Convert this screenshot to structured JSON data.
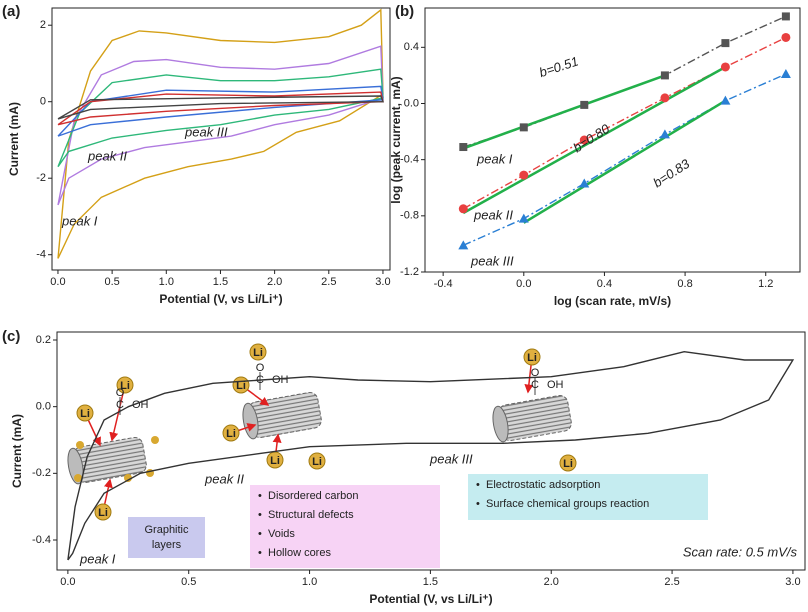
{
  "chart_data": [
    {
      "type": "line",
      "panel_label": "(a)",
      "xlabel": "Potential (V, vs Li/Li⁺)",
      "ylabel": "Current (mA)",
      "xlim": [
        -0.055,
        3.065
      ],
      "ylim": [
        -4.4,
        2.45
      ],
      "xticks": [
        {
          "value": 0,
          "label": "0.0"
        },
        0.5,
        {
          "value": 1,
          "label": "1.0"
        },
        1.5,
        {
          "value": 2,
          "label": "2.0"
        },
        2.5,
        {
          "value": 3,
          "label": "3.0"
        }
      ],
      "yticks": [
        -4,
        -2,
        0,
        2
      ],
      "series": [
        {
          "color": "#d4a017",
          "x": [
            0,
            0.1,
            0.3,
            0.5,
            0.75,
            1.0,
            1.5,
            2.0,
            2.5,
            2.8,
            2.98,
            3.0,
            2.6,
            2.2,
            1.9,
            1.6,
            1.2,
            0.8,
            0.4,
            0.15,
            0
          ],
          "values": [
            -4.1,
            -1.0,
            0.8,
            1.6,
            1.85,
            1.8,
            1.6,
            1.55,
            1.7,
            2.0,
            2.4,
            0.2,
            -0.5,
            -0.8,
            -1.3,
            -1.5,
            -1.7,
            -2.0,
            -2.5,
            -3.2,
            -4.1
          ]
        },
        {
          "color": "#b07be0",
          "x": [
            0,
            0.15,
            0.4,
            0.7,
            1.0,
            1.5,
            2.0,
            2.5,
            2.98,
            3.0,
            2.5,
            2.0,
            1.6,
            1.2,
            0.8,
            0.4,
            0.1,
            0
          ],
          "values": [
            -2.7,
            -0.5,
            0.7,
            1.05,
            1.1,
            0.9,
            0.85,
            1.0,
            1.45,
            0.1,
            -0.35,
            -0.6,
            -0.9,
            -1.05,
            -1.2,
            -1.5,
            -2.0,
            -2.7
          ]
        },
        {
          "color": "#2eb87a",
          "x": [
            0,
            0.2,
            0.5,
            1.0,
            1.5,
            2.0,
            2.5,
            2.98,
            3.0,
            2.5,
            2.0,
            1.5,
            1.0,
            0.5,
            0.1,
            0
          ],
          "values": [
            -1.7,
            -0.3,
            0.5,
            0.7,
            0.55,
            0.55,
            0.65,
            0.85,
            0.1,
            -0.2,
            -0.35,
            -0.6,
            -0.75,
            -0.95,
            -1.3,
            -1.7
          ]
        },
        {
          "color": "#3a6fd8",
          "x": [
            0,
            0.3,
            1.0,
            2.0,
            2.98,
            3.0,
            2.0,
            1.0,
            0.3,
            0
          ],
          "values": [
            -0.9,
            0,
            0.3,
            0.25,
            0.4,
            0.05,
            -0.15,
            -0.4,
            -0.6,
            -0.9
          ]
        },
        {
          "color": "#d03030",
          "x": [
            0,
            0.3,
            1.0,
            2.0,
            2.98,
            3.0,
            2.0,
            1.0,
            0.3,
            0
          ],
          "values": [
            -0.6,
            0,
            0.2,
            0.15,
            0.25,
            0,
            -0.1,
            -0.25,
            -0.4,
            -0.6
          ]
        },
        {
          "color": "#444444",
          "x": [
            0,
            0.3,
            1.5,
            2.98,
            3.0,
            1.5,
            0.3,
            0
          ],
          "values": [
            -0.45,
            0.05,
            0.1,
            0.15,
            0,
            -0.05,
            -0.2,
            -0.45
          ]
        }
      ],
      "annotations": [
        "peak I",
        "peak II",
        "peak III"
      ]
    },
    {
      "type": "line",
      "panel_label": "(b)",
      "xlabel": "log (scan rate, mV/s)",
      "ylabel": "log (peak current, mA)",
      "xlim": [
        -0.49,
        1.37
      ],
      "ylim": [
        -1.2,
        0.68
      ],
      "xticks": [
        -0.4,
        {
          "value": 0,
          "label": "0.0"
        },
        0.4,
        0.8,
        1.2
      ],
      "yticks": [
        -1.2,
        -0.8,
        -0.4,
        {
          "value": 0,
          "label": "0.0"
        },
        0.4
      ],
      "series": [
        {
          "color": "#555555",
          "marker": "square",
          "x": [
            -0.3,
            0,
            0.3,
            0.7,
            1.0,
            1.3
          ],
          "values": [
            -0.31,
            -0.17,
            -0.01,
            0.2,
            0.43,
            0.62
          ]
        },
        {
          "color": "#e84040",
          "marker": "circle",
          "x": [
            -0.3,
            0,
            0.3,
            0.7,
            1.0,
            1.3
          ],
          "values": [
            -0.75,
            -0.51,
            -0.26,
            0.04,
            0.26,
            0.47
          ]
        },
        {
          "color": "#2a7fd4",
          "marker": "triangle",
          "x": [
            -0.3,
            0,
            0.3,
            0.7,
            1.0,
            1.3
          ],
          "values": [
            -1.01,
            -0.82,
            -0.57,
            -0.22,
            0.02,
            0.21
          ]
        }
      ],
      "fit_color": "#22b04a",
      "fit_lines": [
        {
          "x": [
            -0.3,
            0.7
          ],
          "values": [
            -0.32,
            0.2
          ]
        },
        {
          "x": [
            -0.3,
            1.0
          ],
          "values": [
            -0.78,
            0.26
          ]
        },
        {
          "x": [
            0,
            1.0
          ],
          "values": [
            -0.85,
            0.02
          ]
        }
      ],
      "fit_labels": [
        "b=0.51",
        "b=0.80",
        "b=0.83"
      ],
      "annotations": [
        "peak I",
        "peak II",
        "peak III"
      ]
    },
    {
      "type": "line",
      "panel_label": "(c)",
      "xlabel": "Potential (V, vs Li/Li⁺)",
      "ylabel": "Current (mA)",
      "xlim": [
        -0.045,
        3.05
      ],
      "ylim": [
        -0.49,
        0.224
      ],
      "xticks": [
        {
          "value": 0,
          "label": "0.0"
        },
        0.5,
        {
          "value": 1,
          "label": "1.0"
        },
        1.5,
        {
          "value": 2,
          "label": "2.0"
        },
        2.5,
        {
          "value": 3,
          "label": "3.0"
        }
      ],
      "yticks": [
        -0.4,
        -0.2,
        {
          "value": 0,
          "label": "0.0"
        },
        0.2
      ],
      "series": [
        {
          "color": "#333333",
          "x": [
            0,
            0.03,
            0.08,
            0.15,
            0.25,
            0.4,
            0.6,
            1.0,
            1.2,
            1.5,
            2.0,
            2.3,
            2.55,
            2.8,
            2.97,
            3.0,
            2.9,
            2.7,
            2.4,
            2.1,
            1.8,
            1.4,
            1.0,
            0.8,
            0.5,
            0.3,
            0.15,
            0.07,
            0.02,
            0
          ],
          "values": [
            -0.46,
            -0.3,
            -0.15,
            -0.04,
            0,
            0.04,
            0.07,
            0.09,
            0.08,
            0.075,
            0.09,
            0.12,
            0.165,
            0.14,
            0.14,
            0.14,
            0.02,
            -0.04,
            -0.08,
            -0.1,
            -0.11,
            -0.11,
            -0.12,
            -0.14,
            -0.17,
            -0.2,
            -0.26,
            -0.35,
            -0.44,
            -0.46
          ]
        }
      ],
      "annotations": [
        "peak I",
        "peak II",
        "peak III",
        "Scan rate: 0.5 mV/s"
      ],
      "boxes": [
        {
          "color": "#c9c9ee",
          "items": [
            "Graphitic layers"
          ]
        },
        {
          "color": "#f7d3f5",
          "items": [
            "Disordered carbon",
            "Structural defects",
            "Voids",
            "Hollow cores"
          ]
        },
        {
          "color": "#c5ecf0",
          "items": [
            "Electrostatic adsorption",
            "Surface chemical groups reaction"
          ]
        }
      ],
      "bullet": "•",
      "li_label": "Li",
      "group_labels": [
        "O",
        "C",
        "OH"
      ]
    }
  ]
}
